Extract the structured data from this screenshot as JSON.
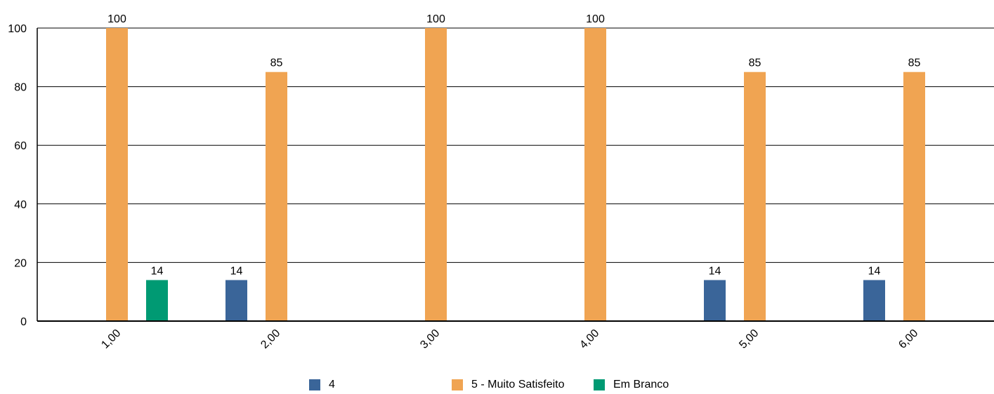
{
  "chart_data": {
    "type": "bar",
    "categories": [
      "1,00",
      "2,00",
      "3,00",
      "4,00",
      "5,00",
      "6,00"
    ],
    "series": [
      {
        "name": "4",
        "color": "#3a6599",
        "values": [
          null,
          14,
          null,
          null,
          14,
          14
        ]
      },
      {
        "name": "5 - Muito Satisfeito",
        "color": "#f0a452",
        "values": [
          100,
          85,
          100,
          100,
          85,
          85
        ]
      },
      {
        "name": "Em Branco",
        "color": "#009a73",
        "values": [
          14,
          null,
          null,
          null,
          null,
          null
        ]
      }
    ],
    "ylim": [
      0,
      100
    ],
    "yticks": [
      0,
      20,
      40,
      60,
      80,
      100
    ],
    "grid": true,
    "legend_position": "bottom"
  }
}
